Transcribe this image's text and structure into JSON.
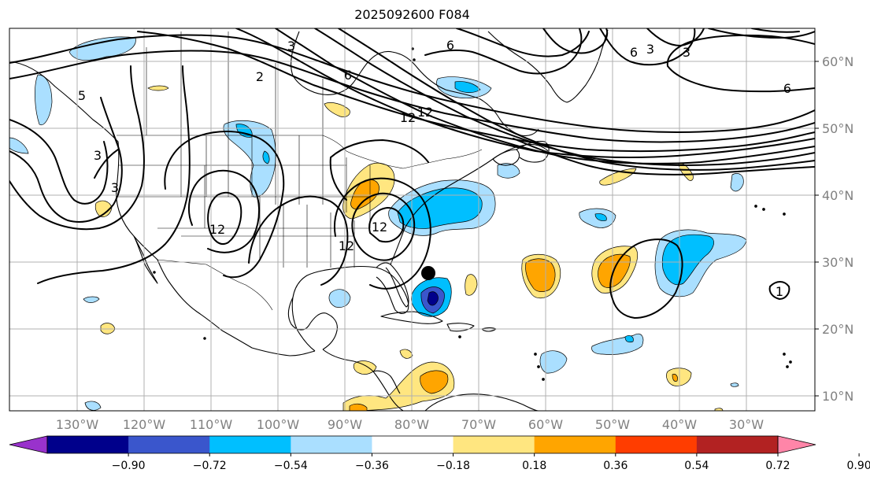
{
  "title": "2025092600 F084",
  "lat_labels": [
    "60°N",
    "50°N",
    "40°N",
    "30°N",
    "20°N",
    "10°N"
  ],
  "lon_labels": [
    "130°W",
    "120°W",
    "110°W",
    "100°W",
    "90°W",
    "80°W",
    "70°W",
    "60°W",
    "50°W",
    "40°W",
    "30°W"
  ],
  "contour_labels": [
    "5",
    "2",
    "6",
    "12",
    "3",
    "3",
    "12",
    "12",
    "6",
    "3",
    "3",
    "6",
    "6",
    "3",
    "12",
    "12",
    "1"
  ],
  "colorbar": {
    "tick_labels": [
      "−0.90",
      "−0.72",
      "−0.54",
      "−0.36",
      "−0.18",
      "0.18",
      "0.36",
      "0.54",
      "0.72",
      "0.90"
    ],
    "bounds": [
      -0.9,
      -0.72,
      -0.54,
      -0.36,
      -0.18,
      0.18,
      0.36,
      0.54,
      0.72,
      0.9
    ],
    "colors": [
      "#9932cc",
      "#00008b",
      "#3a56cc",
      "#00bfff",
      "#aadfff",
      "#ffffff",
      "#ffe680",
      "#ffa500",
      "#ff3d00",
      "#b22222",
      "#ff85a8"
    ]
  },
  "colors": {
    "land_line": "#000000",
    "grid": "#b0b0b0",
    "tick_label": "#808080",
    "contour": "#000000"
  },
  "marker": {
    "name": "storm-position",
    "lat": 28.5,
    "lon": -77.5
  }
}
